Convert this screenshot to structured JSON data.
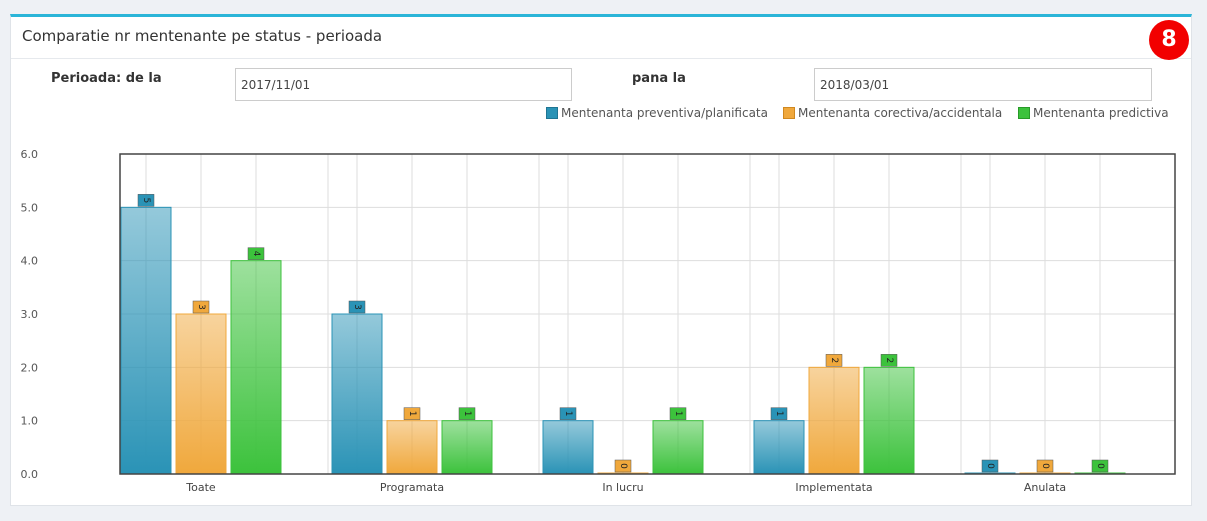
{
  "panel": {
    "title": "Comparatie nr mentenante pe status - perioada",
    "badge": "8"
  },
  "filters": {
    "from_label": "Perioada: de la",
    "from_value": "2017/11/01",
    "to_label": "pana la",
    "to_value": "2018/03/01"
  },
  "chart_data": {
    "type": "bar",
    "categories": [
      "Toate",
      "Programata",
      "In lucru",
      "Implementata",
      "Anulata"
    ],
    "series": [
      {
        "name": "Mentenanta preventiva/planificata",
        "values": [
          5,
          3,
          1,
          1,
          0
        ],
        "color": "#2a93b6"
      },
      {
        "name": "Mentenanta corectiva/accidentala",
        "values": [
          3,
          1,
          0,
          2,
          0
        ],
        "color": "#f0a83c"
      },
      {
        "name": "Mentenanta predictiva",
        "values": [
          4,
          1,
          1,
          2,
          0
        ],
        "color": "#3cc23c"
      }
    ],
    "yticks": [
      "0.0",
      "1.0",
      "2.0",
      "3.0",
      "4.0",
      "5.0",
      "6.0"
    ],
    "ylim": [
      0,
      6
    ],
    "grid": true,
    "legend": "top-right",
    "title": "",
    "xlabel": "",
    "ylabel": ""
  }
}
